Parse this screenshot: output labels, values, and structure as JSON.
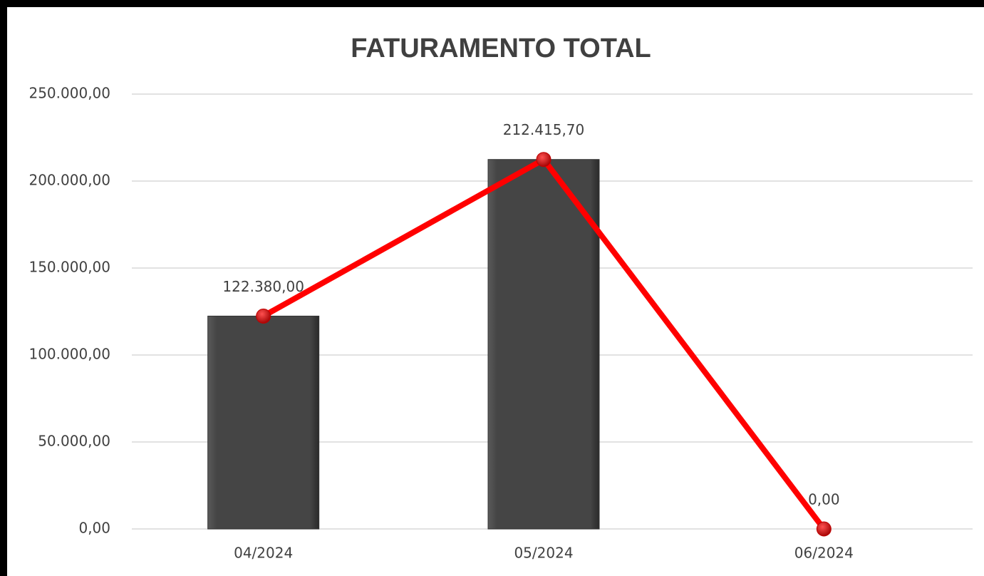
{
  "chart_data": {
    "type": "bar",
    "title": "FATURAMENTO TOTAL",
    "categories": [
      "04/2024",
      "05/2024",
      "06/2024"
    ],
    "values": [
      122380,
      212415.7,
      0
    ],
    "value_labels": [
      "122.380,00",
      "212.415,70",
      "0,00"
    ],
    "color": "#454545",
    "line_color": "#ff0000",
    "ylim": [
      0,
      250000
    ],
    "yticks": [
      {
        "value": 0,
        "label": "0,00"
      },
      {
        "value": 50000,
        "label": "50.000,00"
      },
      {
        "value": 100000,
        "label": "100.000,00"
      },
      {
        "value": 150000,
        "label": "150.000,00"
      },
      {
        "value": 200000,
        "label": "200.000,00"
      },
      {
        "value": 250000,
        "label": "250.000,00"
      }
    ],
    "grid": true
  }
}
